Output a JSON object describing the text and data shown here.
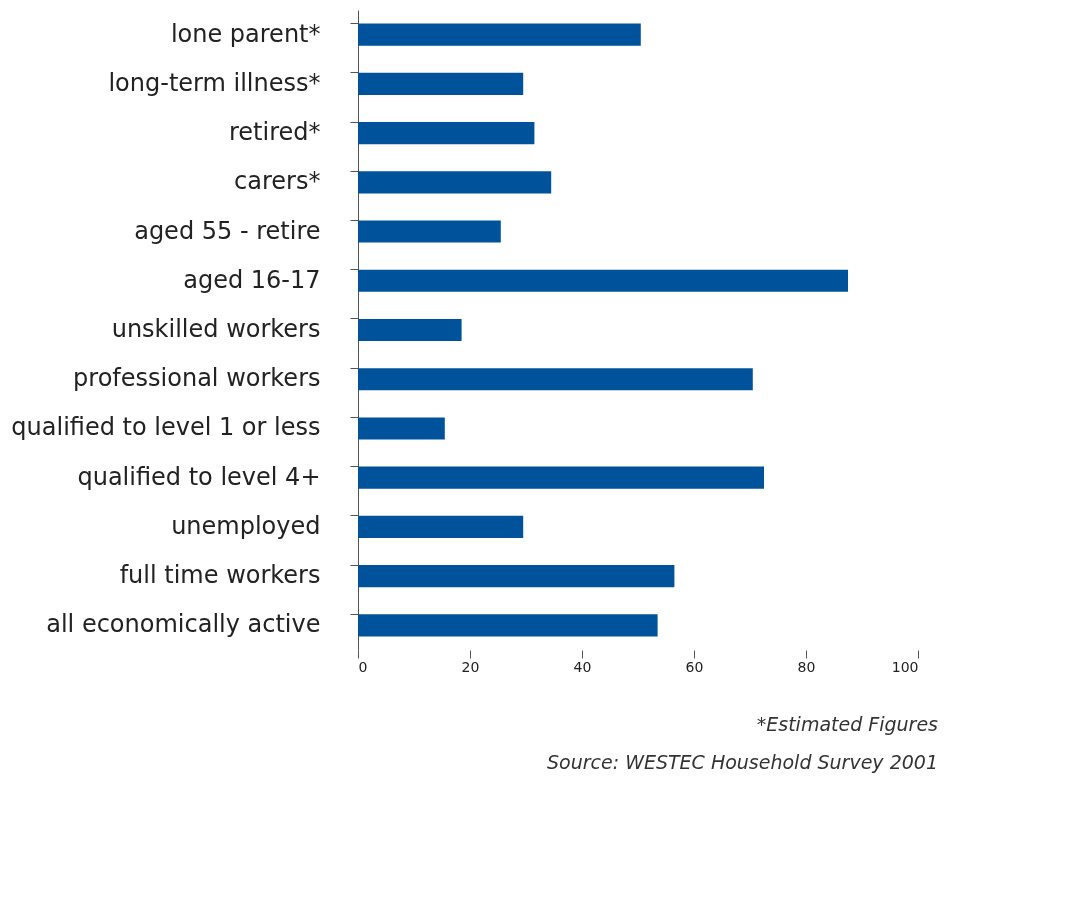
{
  "chart_data": {
    "type": "bar",
    "orientation": "horizontal",
    "categories": [
      "lone parent*",
      "long-term illness*",
      "retired*",
      "carers*",
      "aged 55 - retire",
      "aged 16-17",
      "unskilled workers",
      "professional workers",
      "qualified to level 1 or less",
      "qualified to level 4+",
      "unemployed",
      "full time workers",
      "all economically active"
    ],
    "values": [
      50.5,
      29.5,
      31.5,
      34.5,
      25.5,
      87.5,
      18.5,
      70.5,
      15.5,
      72.5,
      29.5,
      56.5,
      53.5
    ],
    "color": "#00539b",
    "xlim": [
      0,
      100
    ],
    "xticks": [
      0,
      20,
      40,
      60,
      80,
      100
    ],
    "grid": false,
    "annotations": [
      "*Estimated Figures",
      "Source: WESTEC Household Survey 2001"
    ]
  }
}
